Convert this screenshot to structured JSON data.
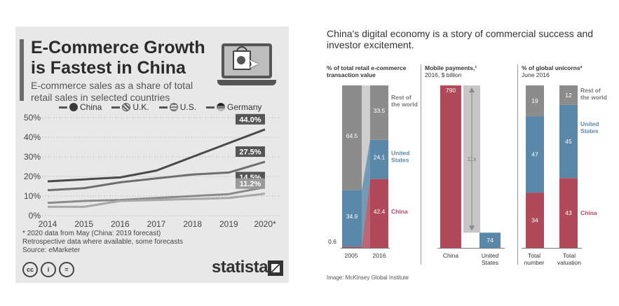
{
  "statista": {
    "title_line1": "E-Commerce Growth",
    "title_line2": "is Fastest in China",
    "subtitle_line1": "E-commerce sales as a share of total",
    "subtitle_line2": "retail sales in selected countries",
    "footnote1": "* 2020 data from May (China: 2019 forecast)",
    "footnote2": "Retrospective data where available, some forecasts",
    "footnote3": "Source: eMarketer",
    "cc_badges": [
      "cc",
      "i",
      "="
    ],
    "brand": "statista",
    "icons": [
      "laptop-shopping-icon",
      "cc-license-icon",
      "statista-logo-icon"
    ],
    "colors": {
      "background": "#e8e8e8",
      "China": "#4a4a4a",
      "U.K.": "#6e6e6e",
      "U.S.": "#8a8a8a",
      "Germany": "#a8a8a8"
    }
  },
  "chart_data": [
    {
      "type": "line",
      "x": [
        "2014",
        "2015",
        "2016",
        "2017",
        "2018",
        "2019",
        "2020*"
      ],
      "series": [
        {
          "name": "China",
          "values": [
            17.5,
            18.5,
            19.5,
            23,
            30,
            37,
            44.0
          ],
          "end_label": "44.0%"
        },
        {
          "name": "U.K.",
          "values": [
            13,
            14,
            17,
            19,
            21,
            22,
            27.5
          ],
          "end_label": "27.5%"
        },
        {
          "name": "U.S.",
          "values": [
            6.5,
            7.5,
            8,
            9,
            10,
            11,
            14.5
          ],
          "end_label": "14.5%"
        },
        {
          "name": "Germany",
          "values": [
            4.5,
            4.5,
            7.5,
            8,
            8.5,
            9,
            11.2
          ],
          "end_label": "11.2%"
        }
      ],
      "yticks": [
        "0%",
        "10%",
        "20%",
        "30%",
        "40%",
        "50%"
      ],
      "ylim": [
        0,
        50
      ],
      "grid": true,
      "legend": "top"
    },
    {
      "type": "bar",
      "title": "China's digital economy is a story of commercial success and investor excitement.",
      "panels": [
        {
          "title": "% of total retail e-commerce transaction value",
          "categories": [
            "2005",
            "2016"
          ],
          "series": [
            {
              "name": "China",
              "values": [
                0.6,
                42.4
              ],
              "labels": [
                "0.6",
                "42.4"
              ]
            },
            {
              "name": "United States",
              "values": [
                34.9,
                24.1
              ],
              "labels": [
                "34.9",
                "24.1"
              ]
            },
            {
              "name": "Rest of the world",
              "values": [
                64.5,
                33.5
              ],
              "labels": [
                "64.5",
                "33.5"
              ]
            }
          ]
        },
        {
          "title": "Mobile payments,¹",
          "subtitle": "2016, $ billion",
          "categories": [
            "China",
            "United States"
          ],
          "values": [
            790,
            74
          ],
          "annotation": "11x"
        },
        {
          "title": "% of global unicorns²",
          "subtitle": "June 2016",
          "categories": [
            "Total number",
            "Total valuation"
          ],
          "series": [
            {
              "name": "China",
              "values": [
                34,
                43
              ]
            },
            {
              "name": "United States",
              "values": [
                47,
                45
              ]
            },
            {
              "name": "Rest of the world",
              "values": [
                19,
                12
              ]
            }
          ]
        }
      ],
      "labels": {
        "rest_line1": "Rest of",
        "rest_line2": "the world",
        "us_line1": "United",
        "us_line2": "States",
        "china": "China"
      },
      "colors": {
        "China": "#b04a5a",
        "United States": "#5a88a8",
        "Rest of the world": "#8c8c8c",
        "gap": "#c6c6c6"
      }
    }
  ],
  "right": {
    "title": "China's digital economy is a story of commercial success and investor excitement.",
    "p1_title_line1": "% of total retail e-commerce",
    "p1_title_line2": "transaction value",
    "p2_title": "Mobile payments,¹",
    "p2_sub": "2016, $ billion",
    "p3_title": "% of global unicorns²",
    "p3_sub": "June 2016",
    "us_line1": "United",
    "us_line2": "States",
    "total_number_line1": "Total",
    "total_number_line2": "number",
    "total_valuation_line1": "Total",
    "total_valuation_line2": "valuation",
    "source": "Image: McKinsey Global Institute"
  }
}
